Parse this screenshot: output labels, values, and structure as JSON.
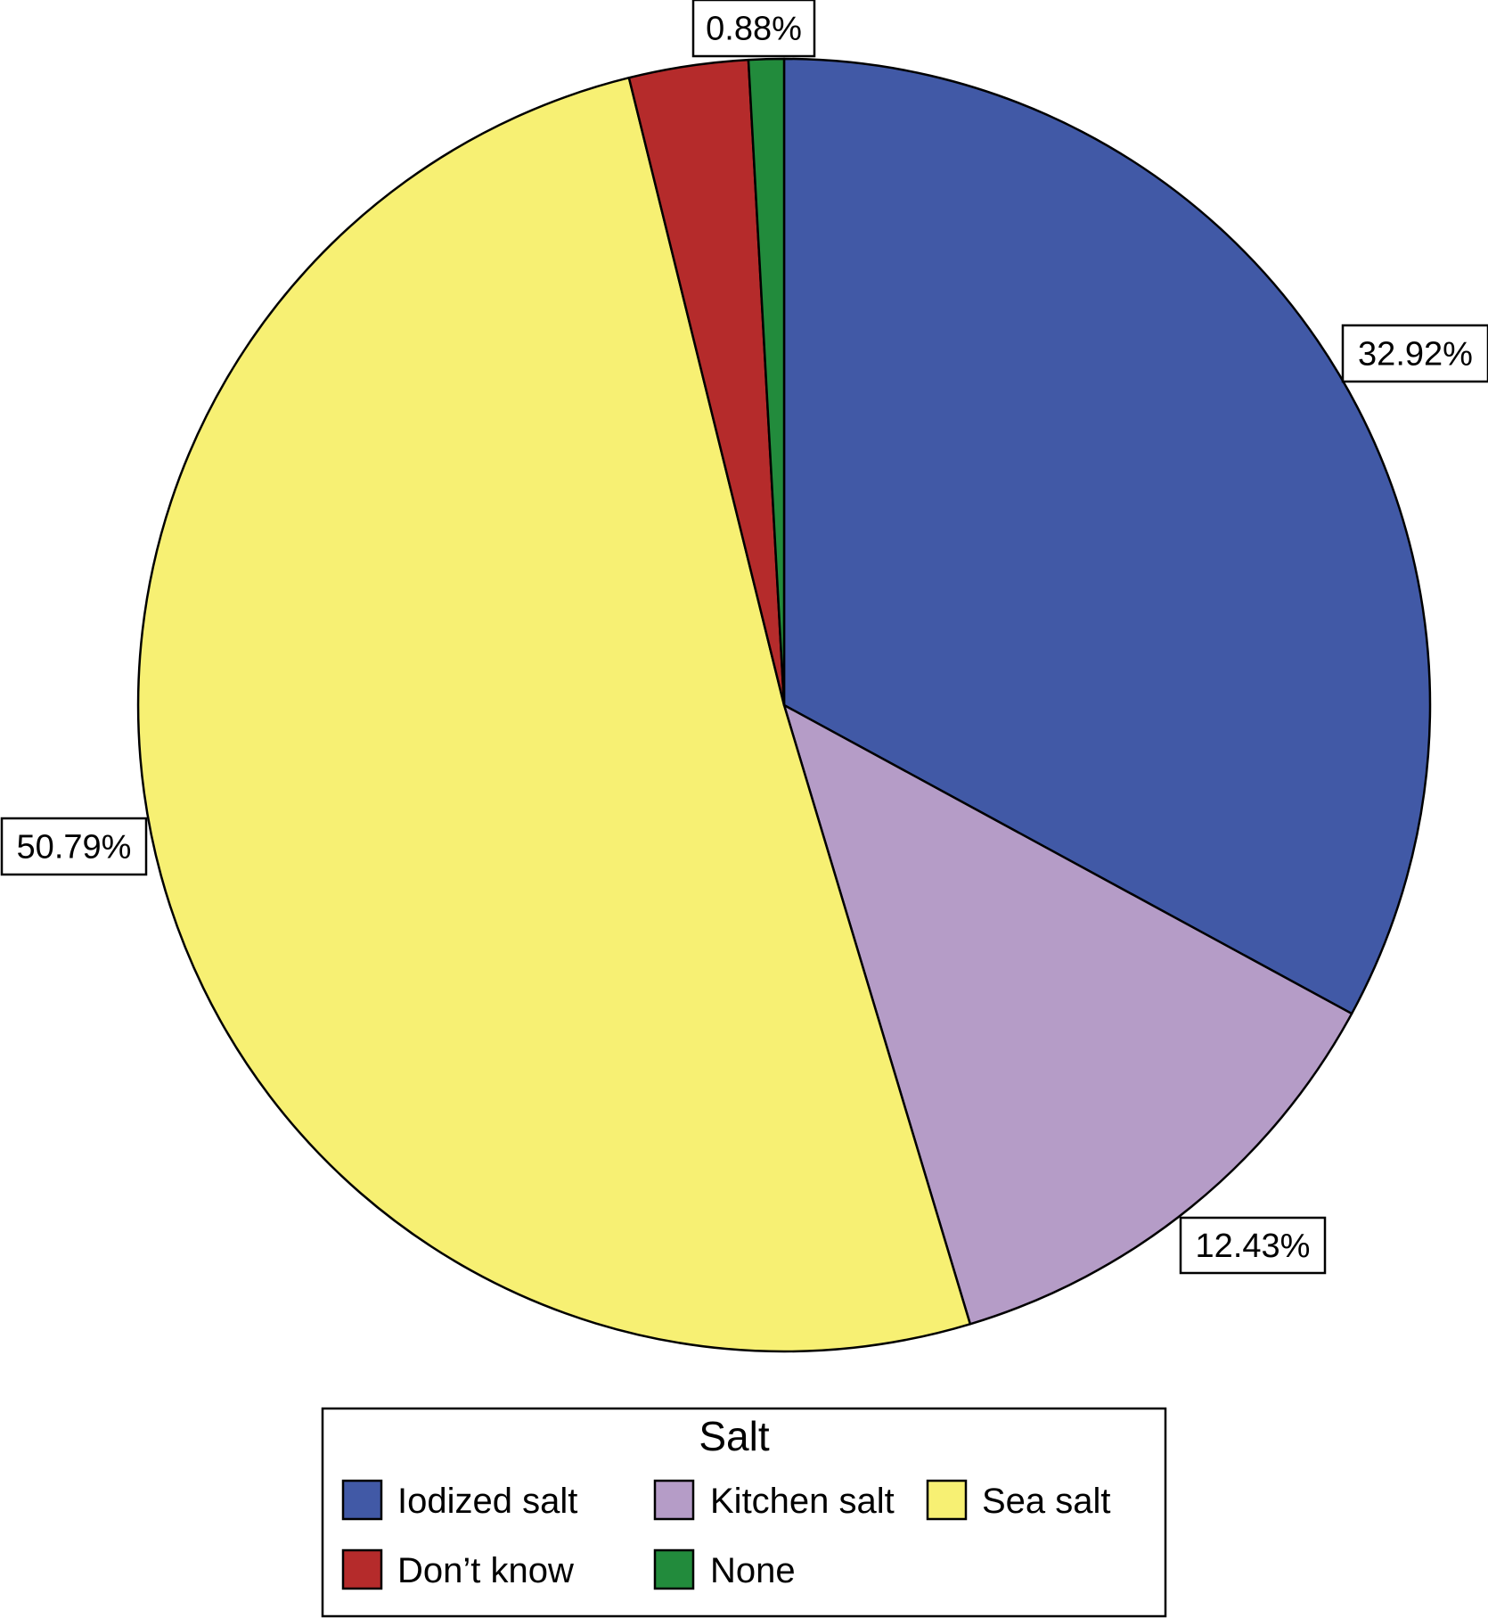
{
  "chart_data": {
    "type": "pie",
    "title": "",
    "start_angle_deg": 0,
    "direction": "clockwise",
    "slices": [
      {
        "category": "Iodized salt",
        "value": 32.92,
        "label": "32.92%",
        "color": "#4159a6",
        "label_shown": true
      },
      {
        "category": "Kitchen salt",
        "value": 12.43,
        "label": "12.43%",
        "color": "#b59cc7",
        "label_shown": true
      },
      {
        "category": "Sea salt",
        "value": 50.79,
        "label": "50.79%",
        "color": "#f7f073",
        "label_shown": true
      },
      {
        "category": "Don’t know",
        "value": 2.98,
        "label": "",
        "color": "#b52b2b",
        "label_shown": false
      },
      {
        "category": "None",
        "value": 0.88,
        "label": "0.88%",
        "color": "#228b3c",
        "label_shown": true
      }
    ],
    "legend": {
      "title": "Salt",
      "placement": "bottom",
      "entries": [
        "Iodized salt",
        "Kitchen salt",
        "Sea salt",
        "Don’t know",
        "None"
      ]
    }
  }
}
